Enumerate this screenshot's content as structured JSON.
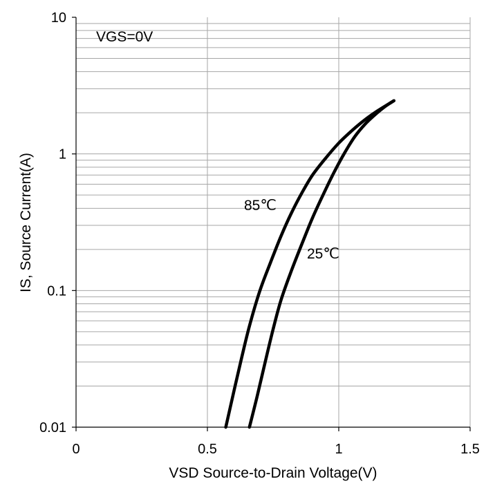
{
  "chart_data": {
    "type": "line",
    "xlabel": "VSD Source-to-Drain Voltage(V)",
    "ylabel": "IS, Source Current(A)",
    "xlim": [
      0,
      1.5
    ],
    "ylim": [
      0.01,
      10
    ],
    "y_scale": "log",
    "grid": true,
    "x_ticks": [
      "0",
      "0.5",
      "1",
      "1.5"
    ],
    "y_ticks": [
      "0.01",
      "0.1",
      "1",
      "10"
    ],
    "annotations": [
      "VGS=0V",
      "85℃",
      "25℃"
    ],
    "series": [
      {
        "name": "85℃",
        "x": [
          0.57,
          0.6,
          0.63,
          0.66,
          0.7,
          0.74,
          0.78,
          0.82,
          0.86,
          0.9,
          0.95,
          1.0,
          1.05,
          1.1,
          1.15,
          1.21
        ],
        "y": [
          0.01,
          0.018,
          0.032,
          0.055,
          0.1,
          0.16,
          0.25,
          0.37,
          0.52,
          0.7,
          0.93,
          1.2,
          1.48,
          1.78,
          2.08,
          2.45
        ]
      },
      {
        "name": "25℃",
        "x": [
          0.66,
          0.69,
          0.72,
          0.75,
          0.78,
          0.82,
          0.86,
          0.9,
          0.94,
          0.98,
          1.02,
          1.06,
          1.1,
          1.14,
          1.18,
          1.21
        ],
        "y": [
          0.01,
          0.017,
          0.03,
          0.052,
          0.085,
          0.14,
          0.22,
          0.34,
          0.5,
          0.72,
          1.0,
          1.33,
          1.65,
          1.95,
          2.25,
          2.45
        ]
      }
    ]
  }
}
